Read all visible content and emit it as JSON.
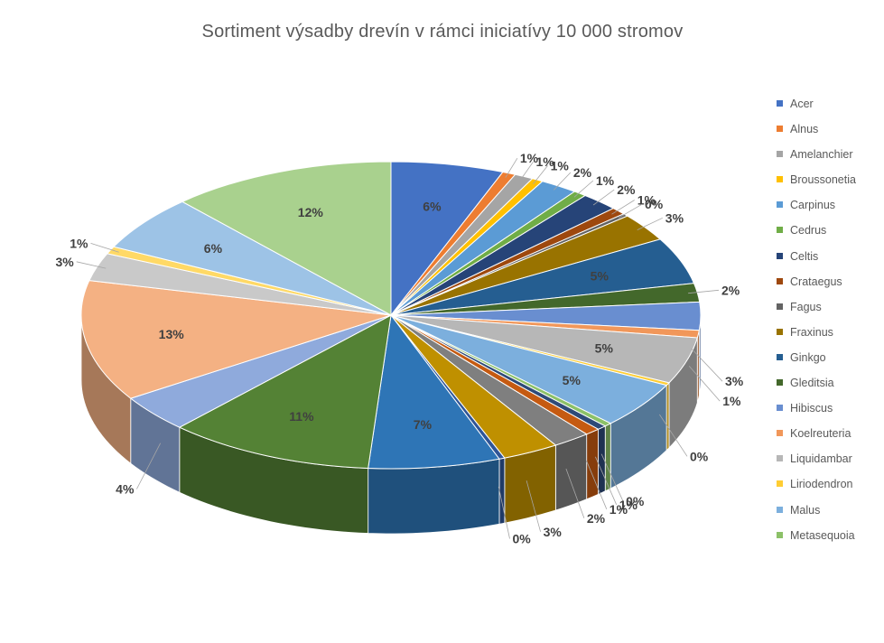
{
  "chart_data": {
    "type": "pie",
    "title": "Sortiment výsadby drevín v rámci iniciatívy 10 000 stromov",
    "legend_position": "right",
    "slices": [
      {
        "name": "Acer",
        "value": 6,
        "label": "6%",
        "color": "#4472C4"
      },
      {
        "name": "Alnus",
        "value": 0.7,
        "label": "1%",
        "color": "#ED7D31"
      },
      {
        "name": "Amelanchier",
        "value": 1.0,
        "label": "1%",
        "color": "#A5A5A5"
      },
      {
        "name": "Broussonetia",
        "value": 0.6,
        "label": "1%",
        "color": "#FFC000"
      },
      {
        "name": "Carpinus",
        "value": 2,
        "label": "2%",
        "color": "#5B9BD5"
      },
      {
        "name": "Cedrus",
        "value": 0.7,
        "label": "1%",
        "color": "#70AD47"
      },
      {
        "name": "Celtis",
        "value": 2,
        "label": "2%",
        "color": "#264478"
      },
      {
        "name": "Crataegus",
        "value": 0.8,
        "label": "1%",
        "color": "#9E480E"
      },
      {
        "name": "Fagus",
        "value": 0.3,
        "label": "0%",
        "color": "#636363"
      },
      {
        "name": "Fraxinus",
        "value": 3,
        "label": "3%",
        "color": "#997300"
      },
      {
        "name": "Ginkgo",
        "value": 5,
        "label": "5%",
        "color": "#255E91"
      },
      {
        "name": "Gleditsia",
        "value": 2,
        "label": "2%",
        "color": "#43682B"
      },
      {
        "name": "Hibiscus",
        "value": 3,
        "label": "3%",
        "color": "#698ED0"
      },
      {
        "name": "Koelreuteria",
        "value": 0.8,
        "label": "1%",
        "color": "#F1975A"
      },
      {
        "name": "Liquidambar",
        "value": 5,
        "label": "5%",
        "color": "#B7B7B7"
      },
      {
        "name": "Liriodendron",
        "value": 0.3,
        "label": "0%",
        "color": "#FFCD33"
      },
      {
        "name": "Malus",
        "value": 5,
        "label": "5%",
        "color": "#7CAFDD"
      },
      {
        "name": "Metasequoia",
        "value": 0.4,
        "label": "0%",
        "color": "#8CC168"
      },
      {
        "name": "",
        "value": 0.5,
        "label": "1%",
        "color": "#2E4A78"
      },
      {
        "name": "",
        "value": 0.8,
        "label": "1%",
        "color": "#C55A11"
      },
      {
        "name": "",
        "value": 2,
        "label": "2%",
        "color": "#7F7F7F"
      },
      {
        "name": "",
        "value": 3,
        "label": "3%",
        "color": "#BF9000"
      },
      {
        "name": "",
        "value": 0.3,
        "label": "0%",
        "color": "#2F5597"
      },
      {
        "name": "",
        "value": 7,
        "label": "7%",
        "color": "#2E75B6"
      },
      {
        "name": "",
        "value": 11,
        "label": "11%",
        "color": "#548235"
      },
      {
        "name": "",
        "value": 4,
        "label": "4%",
        "color": "#8FAADC"
      },
      {
        "name": "",
        "value": 13,
        "label": "13%",
        "color": "#F4B183"
      },
      {
        "name": "",
        "value": 3,
        "label": "3%",
        "color": "#C9C9C9"
      },
      {
        "name": "",
        "value": 0.8,
        "label": "1%",
        "color": "#FFD966"
      },
      {
        "name": "",
        "value": 6,
        "label": "6%",
        "color": "#9DC3E6"
      },
      {
        "name": "",
        "value": 12,
        "label": "12%",
        "color": "#A9D18E"
      }
    ]
  }
}
